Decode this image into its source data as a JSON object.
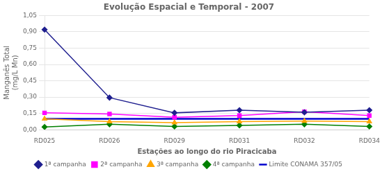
{
  "chart_data": {
    "type": "line",
    "title": "Evolução Espacial e Temporal - 2007",
    "x_label": "Estações ao longo do rio Piracicaba",
    "y_label": "Manganês Total\n(mg/L Mn)",
    "categories": [
      "RD025",
      "RD026",
      "RD029",
      "RD031",
      "RD032",
      "RD034"
    ],
    "series": [
      {
        "name": "1ª campanha",
        "color": "#1F1F8F",
        "marker": "diamond",
        "values": [
          0.92,
          0.295,
          0.155,
          0.18,
          0.16,
          0.18
        ]
      },
      {
        "name": "2ª campanha",
        "color": "#FF00FF",
        "marker": "square",
        "values": [
          0.155,
          0.145,
          0.115,
          0.13,
          0.165,
          0.13
        ]
      },
      {
        "name": "3ª campanha",
        "color": "#FFA500",
        "marker": "triangle",
        "values": [
          0.1,
          0.075,
          0.065,
          0.075,
          0.08,
          0.075
        ]
      },
      {
        "name": "4ª campanha",
        "color": "#008000",
        "marker": "diamond",
        "values": [
          0.025,
          0.05,
          0.03,
          0.04,
          0.05,
          0.03
        ]
      },
      {
        "name": "Limite CONAMA 357/05",
        "color": "#0000CD",
        "marker": "none",
        "line_style": "solid",
        "values": [
          0.1,
          0.1,
          0.1,
          0.1,
          0.1,
          0.1
        ]
      }
    ],
    "ylim": [
      0.0,
      1.05
    ],
    "yticks": [
      {
        "value": 0.0,
        "label": "0,00"
      },
      {
        "value": 0.15,
        "label": "0,15"
      },
      {
        "value": 0.3,
        "label": "0,30"
      },
      {
        "value": 0.45,
        "label": "0,45"
      },
      {
        "value": 0.6,
        "label": "0,60"
      },
      {
        "value": 0.75,
        "label": "0,75"
      },
      {
        "value": 0.9,
        "label": "0,90"
      },
      {
        "value": 1.05,
        "label": "1,05"
      }
    ],
    "grid": true,
    "legend": "bottom"
  }
}
